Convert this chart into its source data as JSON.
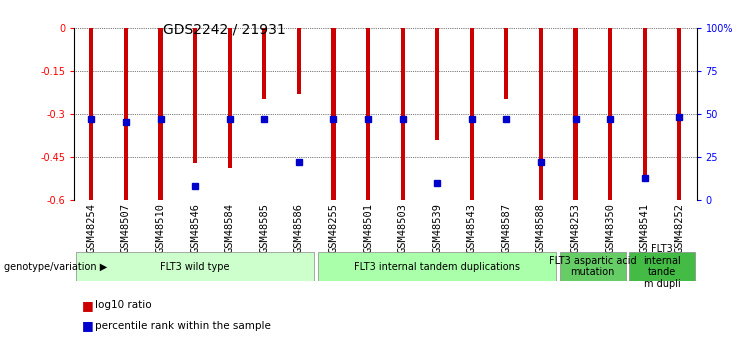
{
  "title": "GDS2242 / 21931",
  "samples": [
    "GSM48254",
    "GSM48507",
    "GSM48510",
    "GSM48546",
    "GSM48584",
    "GSM48585",
    "GSM48586",
    "GSM48255",
    "GSM48501",
    "GSM48503",
    "GSM48539",
    "GSM48543",
    "GSM48587",
    "GSM48588",
    "GSM48253",
    "GSM48350",
    "GSM48541",
    "GSM48252"
  ],
  "log10_ratio": [
    -0.6,
    -0.6,
    -0.6,
    -0.47,
    -0.49,
    -0.25,
    -0.23,
    -0.6,
    -0.6,
    -0.6,
    -0.39,
    -0.6,
    -0.25,
    -0.6,
    -0.6,
    -0.6,
    -0.53,
    -0.6
  ],
  "percentile_rank": [
    47,
    45,
    47,
    8,
    47,
    47,
    22,
    47,
    47,
    47,
    10,
    47,
    47,
    22,
    47,
    47,
    13,
    48
  ],
  "group_labels": [
    "FLT3 wild type",
    "FLT3 internal tandem duplications",
    "FLT3 aspartic acid\nmutation",
    "FLT3\ninternal\ntande\nm dupli"
  ],
  "group_starts": [
    0,
    7,
    14,
    16
  ],
  "group_ends": [
    7,
    14,
    16,
    18
  ],
  "group_colors": [
    "#ccffcc",
    "#aaffaa",
    "#66cc66",
    "#44bb44"
  ],
  "ylim_left": [
    -0.6,
    0.0
  ],
  "yticks_left": [
    0.0,
    -0.15,
    -0.3,
    -0.45,
    -0.6
  ],
  "ytick_labels_left": [
    "0",
    "-0.15",
    "-0.3",
    "-0.45",
    "-0.6"
  ],
  "yticks_right_pct": [
    0,
    25,
    50,
    75,
    100
  ],
  "ytick_labels_right": [
    "0",
    "25",
    "50",
    "75",
    "100%"
  ],
  "bar_color": "#cc0000",
  "dot_color": "#0000cc",
  "bar_width": 0.12,
  "dot_size": 4,
  "legend_label_red": "log10 ratio",
  "legend_label_blue": "percentile rank within the sample",
  "genotype_label": "genotype/variation",
  "background_color": "#ffffff",
  "title_fontsize": 10,
  "axis_label_fontsize": 7.5,
  "tick_label_fontsize": 7,
  "group_label_fontsize": 7,
  "legend_fontsize": 7.5
}
